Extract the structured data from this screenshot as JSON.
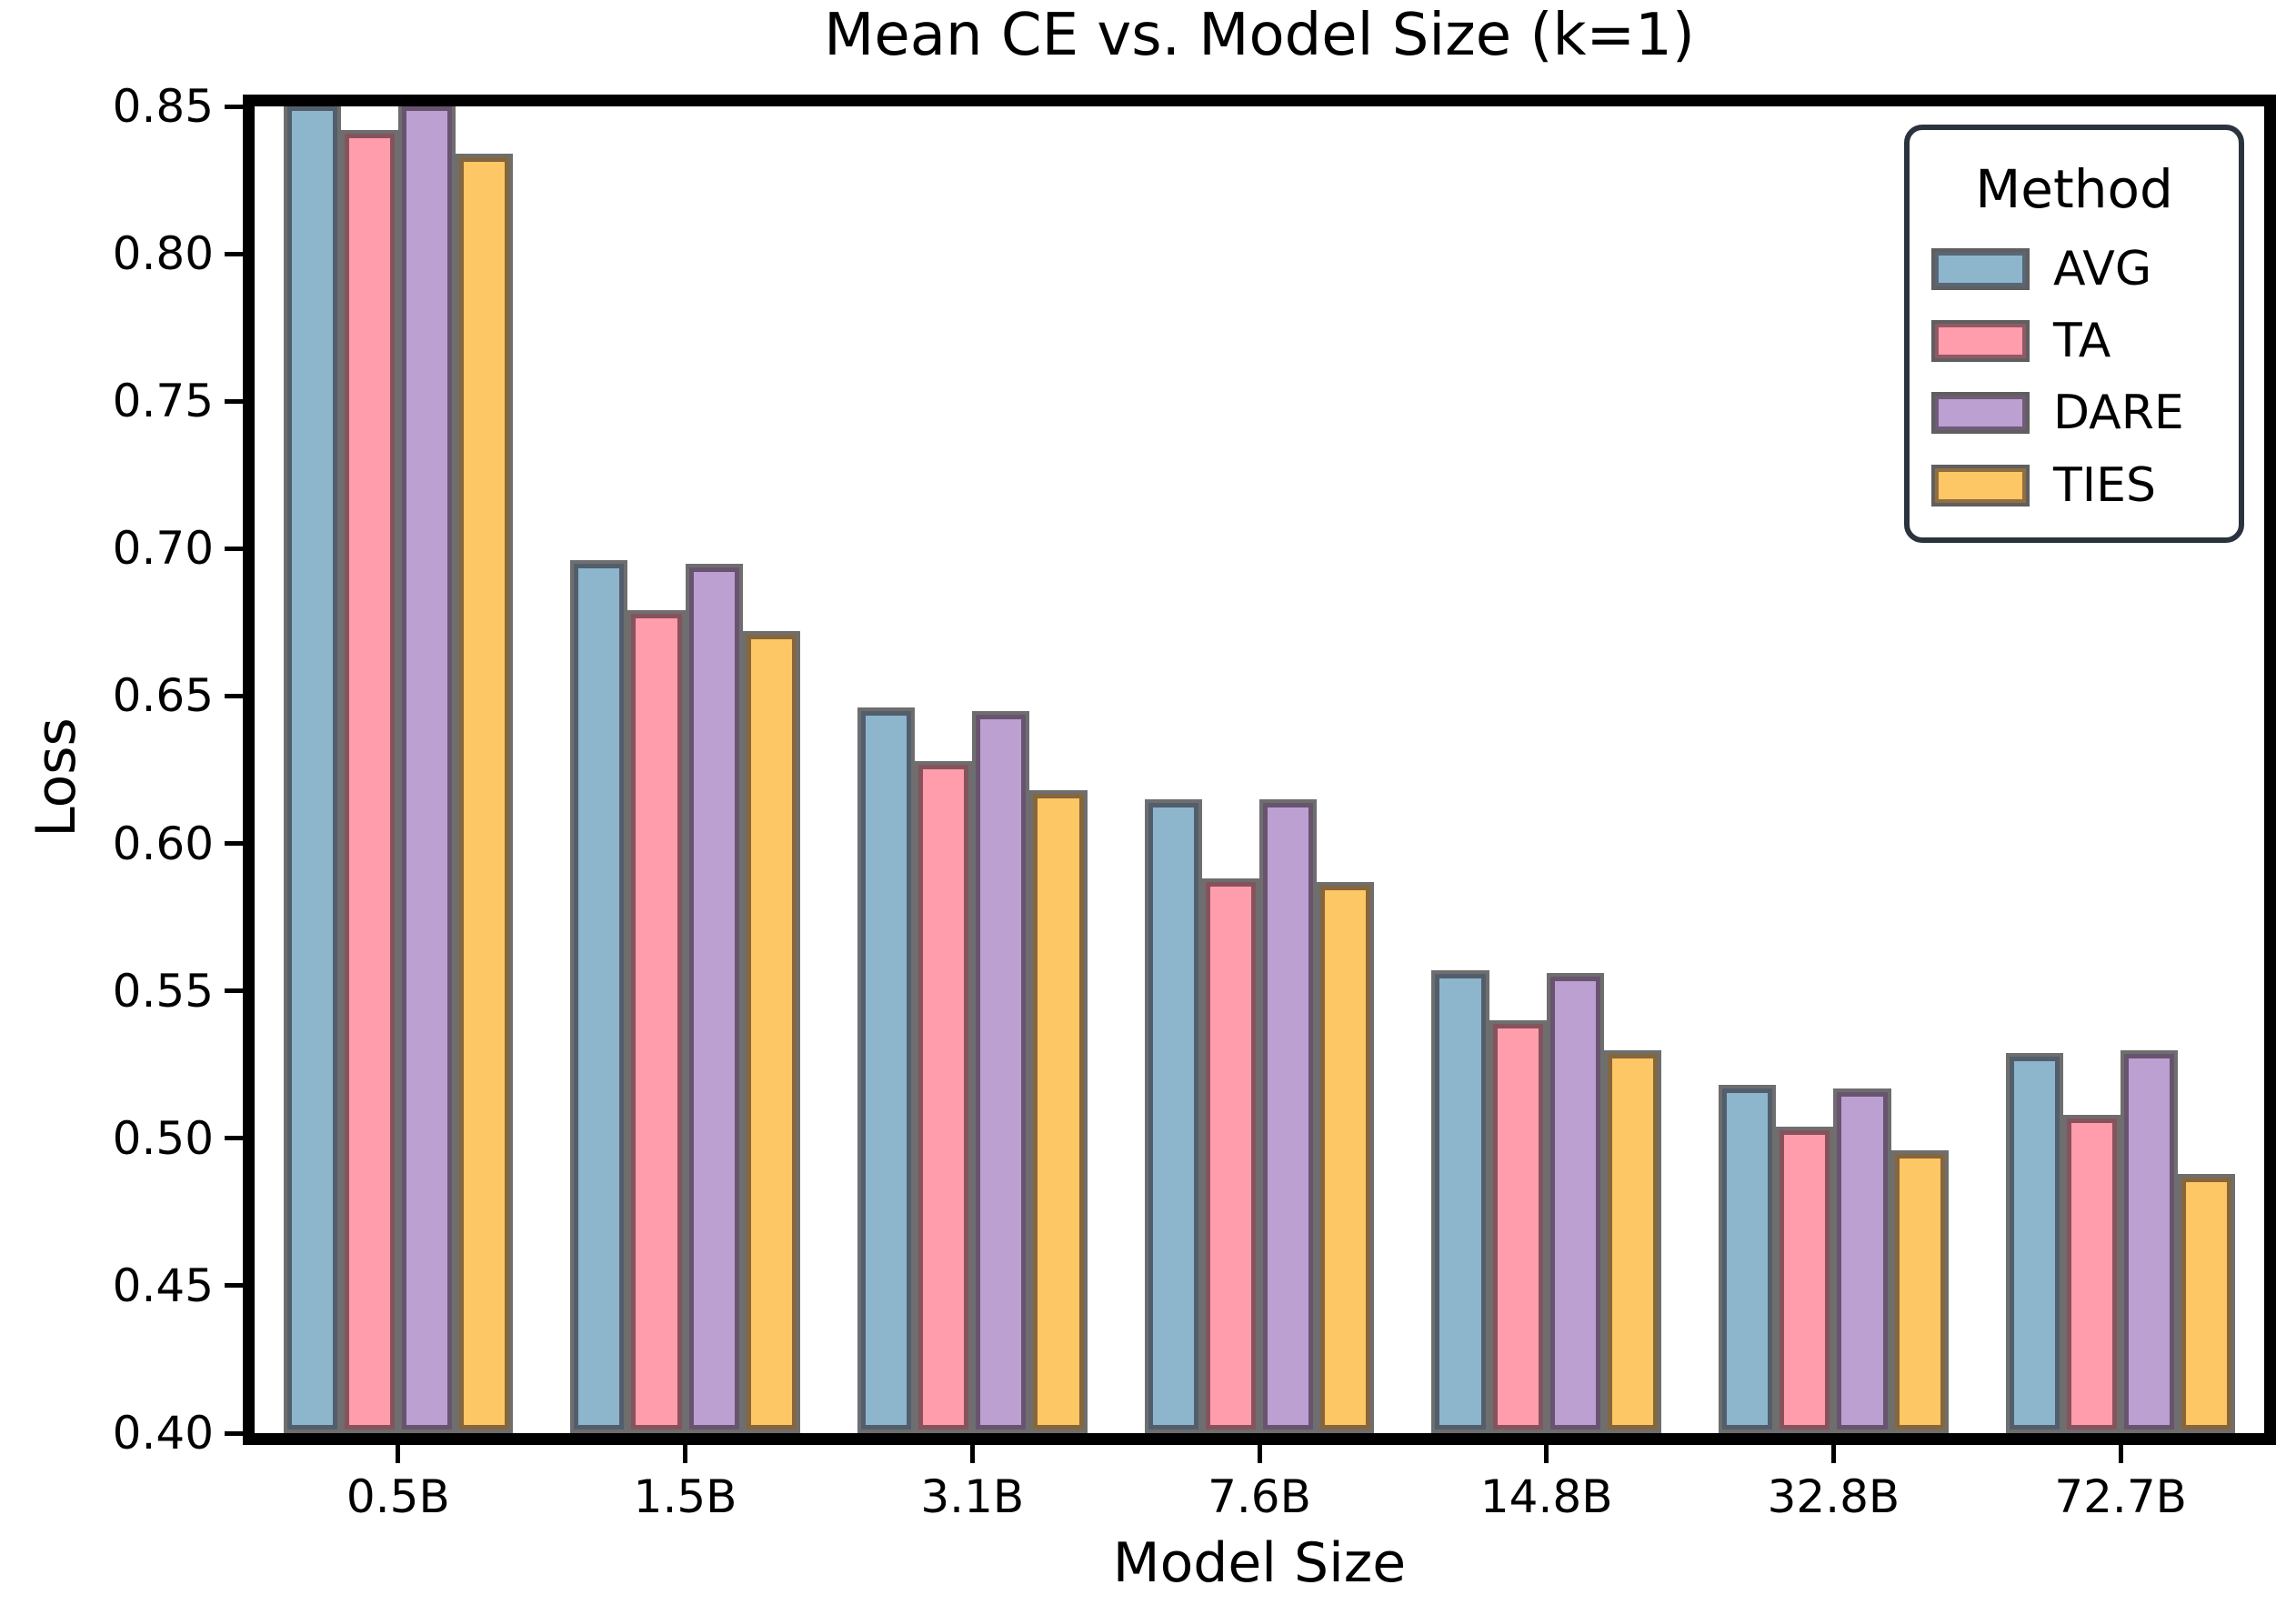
{
  "title": "Mean CE vs. Model Size (k=1)",
  "axes": {
    "xlabel": "Model Size",
    "ylabel": "Loss",
    "yticks": [
      "0.40",
      "0.45",
      "0.50",
      "0.55",
      "0.60",
      "0.65",
      "0.70",
      "0.75",
      "0.80",
      "0.85"
    ],
    "xticks": [
      "0.5B",
      "1.5B",
      "3.1B",
      "7.6B",
      "14.8B",
      "32.8B",
      "72.7B"
    ]
  },
  "legend": {
    "title": "Method",
    "entries": [
      {
        "label": "AVG",
        "color": "#8db6cd"
      },
      {
        "label": "TA",
        "color": "#ff9dac"
      },
      {
        "label": "DARE",
        "color": "#bca0d2"
      },
      {
        "label": "TIES",
        "color": "#fec765"
      }
    ]
  },
  "chart_data": {
    "type": "bar",
    "title": "Mean CE vs. Model Size (k=1)",
    "xlabel": "Model Size",
    "ylabel": "Loss",
    "ylim": [
      0.4,
      0.85
    ],
    "ytick_step": 0.05,
    "grid": false,
    "legend_title": "Method",
    "legend_position": "upper right",
    "categories": [
      "0.5B",
      "1.5B",
      "3.1B",
      "7.6B",
      "14.8B",
      "32.8B",
      "72.7B"
    ],
    "series": [
      {
        "name": "AVG",
        "color": "#8db6cd",
        "values": [
          0.87,
          0.696,
          0.646,
          0.615,
          0.557,
          0.518,
          0.529
        ]
      },
      {
        "name": "TA",
        "color": "#ff9dac",
        "values": [
          0.842,
          0.679,
          0.628,
          0.588,
          0.54,
          0.504,
          0.508
        ]
      },
      {
        "name": "DARE",
        "color": "#bca0d2",
        "values": [
          0.87,
          0.695,
          0.645,
          0.615,
          0.556,
          0.517,
          0.53
        ]
      },
      {
        "name": "TIES",
        "color": "#fec765",
        "values": [
          0.834,
          0.672,
          0.618,
          0.587,
          0.53,
          0.496,
          0.488
        ]
      }
    ],
    "clipped_at_ymax": [
      {
        "category": "0.5B",
        "series": "AVG"
      },
      {
        "category": "0.5B",
        "series": "DARE"
      }
    ],
    "bar_group_width_fraction": 0.8,
    "bar_edge_color": "#4a4a4a"
  }
}
